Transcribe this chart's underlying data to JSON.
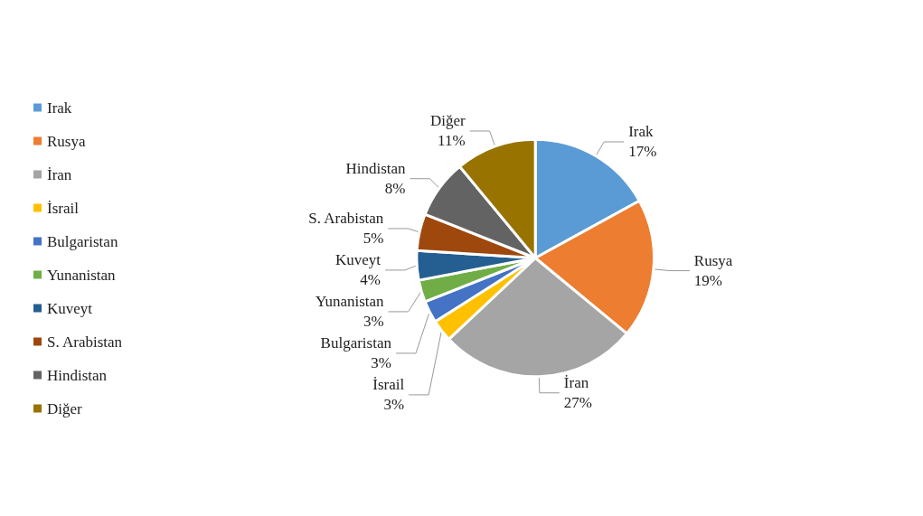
{
  "chart_data": {
    "type": "pie",
    "categories": [
      "Irak",
      "Rusya",
      "İran",
      "İsrail",
      "Bulgaristan",
      "Yunanistan",
      "Kuveyt",
      "S. Arabistan",
      "Hindistan",
      "Diğer"
    ],
    "values": [
      17,
      19,
      27,
      3,
      3,
      3,
      4,
      5,
      8,
      11
    ],
    "value_labels": [
      "17%",
      "19%",
      "27%",
      "3%",
      "3%",
      "3%",
      "4%",
      "5%",
      "8%",
      "11%"
    ],
    "colors": [
      "#5b9bd5",
      "#ed7d31",
      "#a5a5a5",
      "#ffc000",
      "#4472c4",
      "#70ad47",
      "#255e91",
      "#9e480e",
      "#636363",
      "#997300"
    ],
    "legend": "left"
  }
}
